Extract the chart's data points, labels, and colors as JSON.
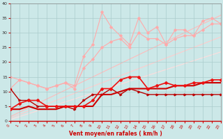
{
  "x": [
    0,
    1,
    2,
    3,
    4,
    5,
    6,
    7,
    8,
    9,
    10,
    11,
    12,
    13,
    14,
    15,
    16,
    17,
    18,
    19,
    20,
    21,
    22,
    23
  ],
  "wavy1": [
    15,
    14,
    13,
    12,
    11,
    12,
    13,
    12,
    22,
    26,
    37,
    32,
    29,
    26,
    35,
    30,
    32,
    26,
    31,
    31,
    29,
    34,
    35,
    33
  ],
  "wavy2": [
    11,
    14,
    13,
    12,
    11,
    12,
    13,
    11,
    18,
    21,
    25,
    27,
    28,
    25,
    30,
    28,
    28,
    26,
    28,
    29,
    29,
    31,
    33,
    33
  ],
  "lin1": [
    1.5,
    3.0,
    4.5,
    6.0,
    7.5,
    9.0,
    10.5,
    12.0,
    13.5,
    15.0,
    16.5,
    18.0,
    19.5,
    21.0,
    22.5,
    24.0,
    25.5,
    27.0,
    28.5,
    30.0,
    31.5,
    33.0,
    34.5,
    36.0
  ],
  "lin2": [
    1.0,
    2.2,
    3.4,
    4.6,
    5.8,
    7.0,
    8.2,
    9.4,
    10.6,
    11.8,
    13.0,
    14.2,
    15.4,
    16.6,
    17.8,
    19.0,
    20.2,
    21.4,
    22.6,
    23.8,
    25.0,
    26.2,
    27.4,
    28.6
  ],
  "lin3": [
    0.5,
    1.5,
    2.5,
    3.5,
    4.5,
    5.5,
    6.5,
    7.5,
    8.5,
    9.5,
    10.5,
    11.5,
    12.5,
    13.5,
    14.5,
    15.5,
    16.5,
    17.5,
    18.5,
    19.5,
    20.5,
    21.5,
    22.5,
    23.5
  ],
  "dark1": [
    4,
    4,
    5,
    4,
    4,
    4,
    5,
    5,
    5,
    5,
    9,
    9,
    10,
    11,
    11,
    11,
    11,
    11,
    12,
    12,
    12,
    13,
    13,
    13
  ],
  "dark2": [
    4,
    6,
    7,
    7,
    5,
    5,
    5,
    5,
    5,
    7,
    11,
    11,
    14,
    15,
    15,
    11,
    12,
    13,
    12,
    12,
    13,
    13,
    14,
    14
  ],
  "dark3": [
    11,
    7,
    7,
    5,
    5,
    5,
    5,
    4,
    7,
    9,
    9,
    11,
    9,
    11,
    10,
    9,
    9,
    9,
    9,
    9,
    9,
    9,
    9,
    9
  ],
  "bg_color": "#cce8e8",
  "grid_color": "#aacccc",
  "wavy_color": "#ffaaaa",
  "lin_color1": "#ffbbbb",
  "lin_color2": "#ffcccc",
  "lin_color3": "#ffdddd",
  "dark1_color": "#cc0000",
  "dark2_color": "#ee1111",
  "dark3_color": "#bb0000",
  "xlabel": "Vent moyen/en rafales ( km/h )",
  "xlim": [
    0,
    23
  ],
  "ylim": [
    0,
    40
  ],
  "yticks": [
    0,
    5,
    10,
    15,
    20,
    25,
    30,
    35,
    40
  ],
  "xticks": [
    0,
    1,
    2,
    3,
    4,
    5,
    6,
    7,
    8,
    9,
    10,
    11,
    12,
    13,
    14,
    15,
    16,
    17,
    18,
    19,
    20,
    21,
    22,
    23
  ]
}
